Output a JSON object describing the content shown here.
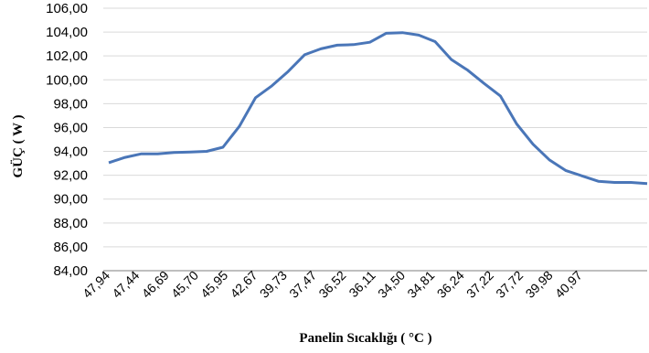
{
  "chart_data": {
    "type": "line",
    "xlabel": "Panelin Sıcaklığı ( °C )",
    "ylabel": "GÜÇ ( W )",
    "ylim": [
      84,
      106
    ],
    "y_ticks": [
      "84,00",
      "86,00",
      "88,00",
      "90,00",
      "92,00",
      "94,00",
      "96,00",
      "98,00",
      "100,00",
      "102,00",
      "104,00",
      "106,00"
    ],
    "x_tick_labels": [
      "47,94",
      "47,44",
      "46,69",
      "45,70",
      "45,95",
      "42,67",
      "39,73",
      "37,47",
      "36,52",
      "36,11",
      "34,50",
      "34,81",
      "36,24",
      "37,22",
      "37,72",
      "39,98",
      "40,97"
    ],
    "grid": "horizontal",
    "series": [
      {
        "color": "#4a76b8",
        "values": [
          93.05,
          93.5,
          93.8,
          93.8,
          93.9,
          93.95,
          94.0,
          94.35,
          96.1,
          98.5,
          99.5,
          100.7,
          102.1,
          102.6,
          102.9,
          102.95,
          103.15,
          103.9,
          103.95,
          103.75,
          103.2,
          101.7,
          100.8,
          99.7,
          98.65,
          96.3,
          94.6,
          93.3,
          92.4,
          91.95,
          91.5,
          91.4,
          91.4,
          91.3
        ]
      }
    ]
  }
}
